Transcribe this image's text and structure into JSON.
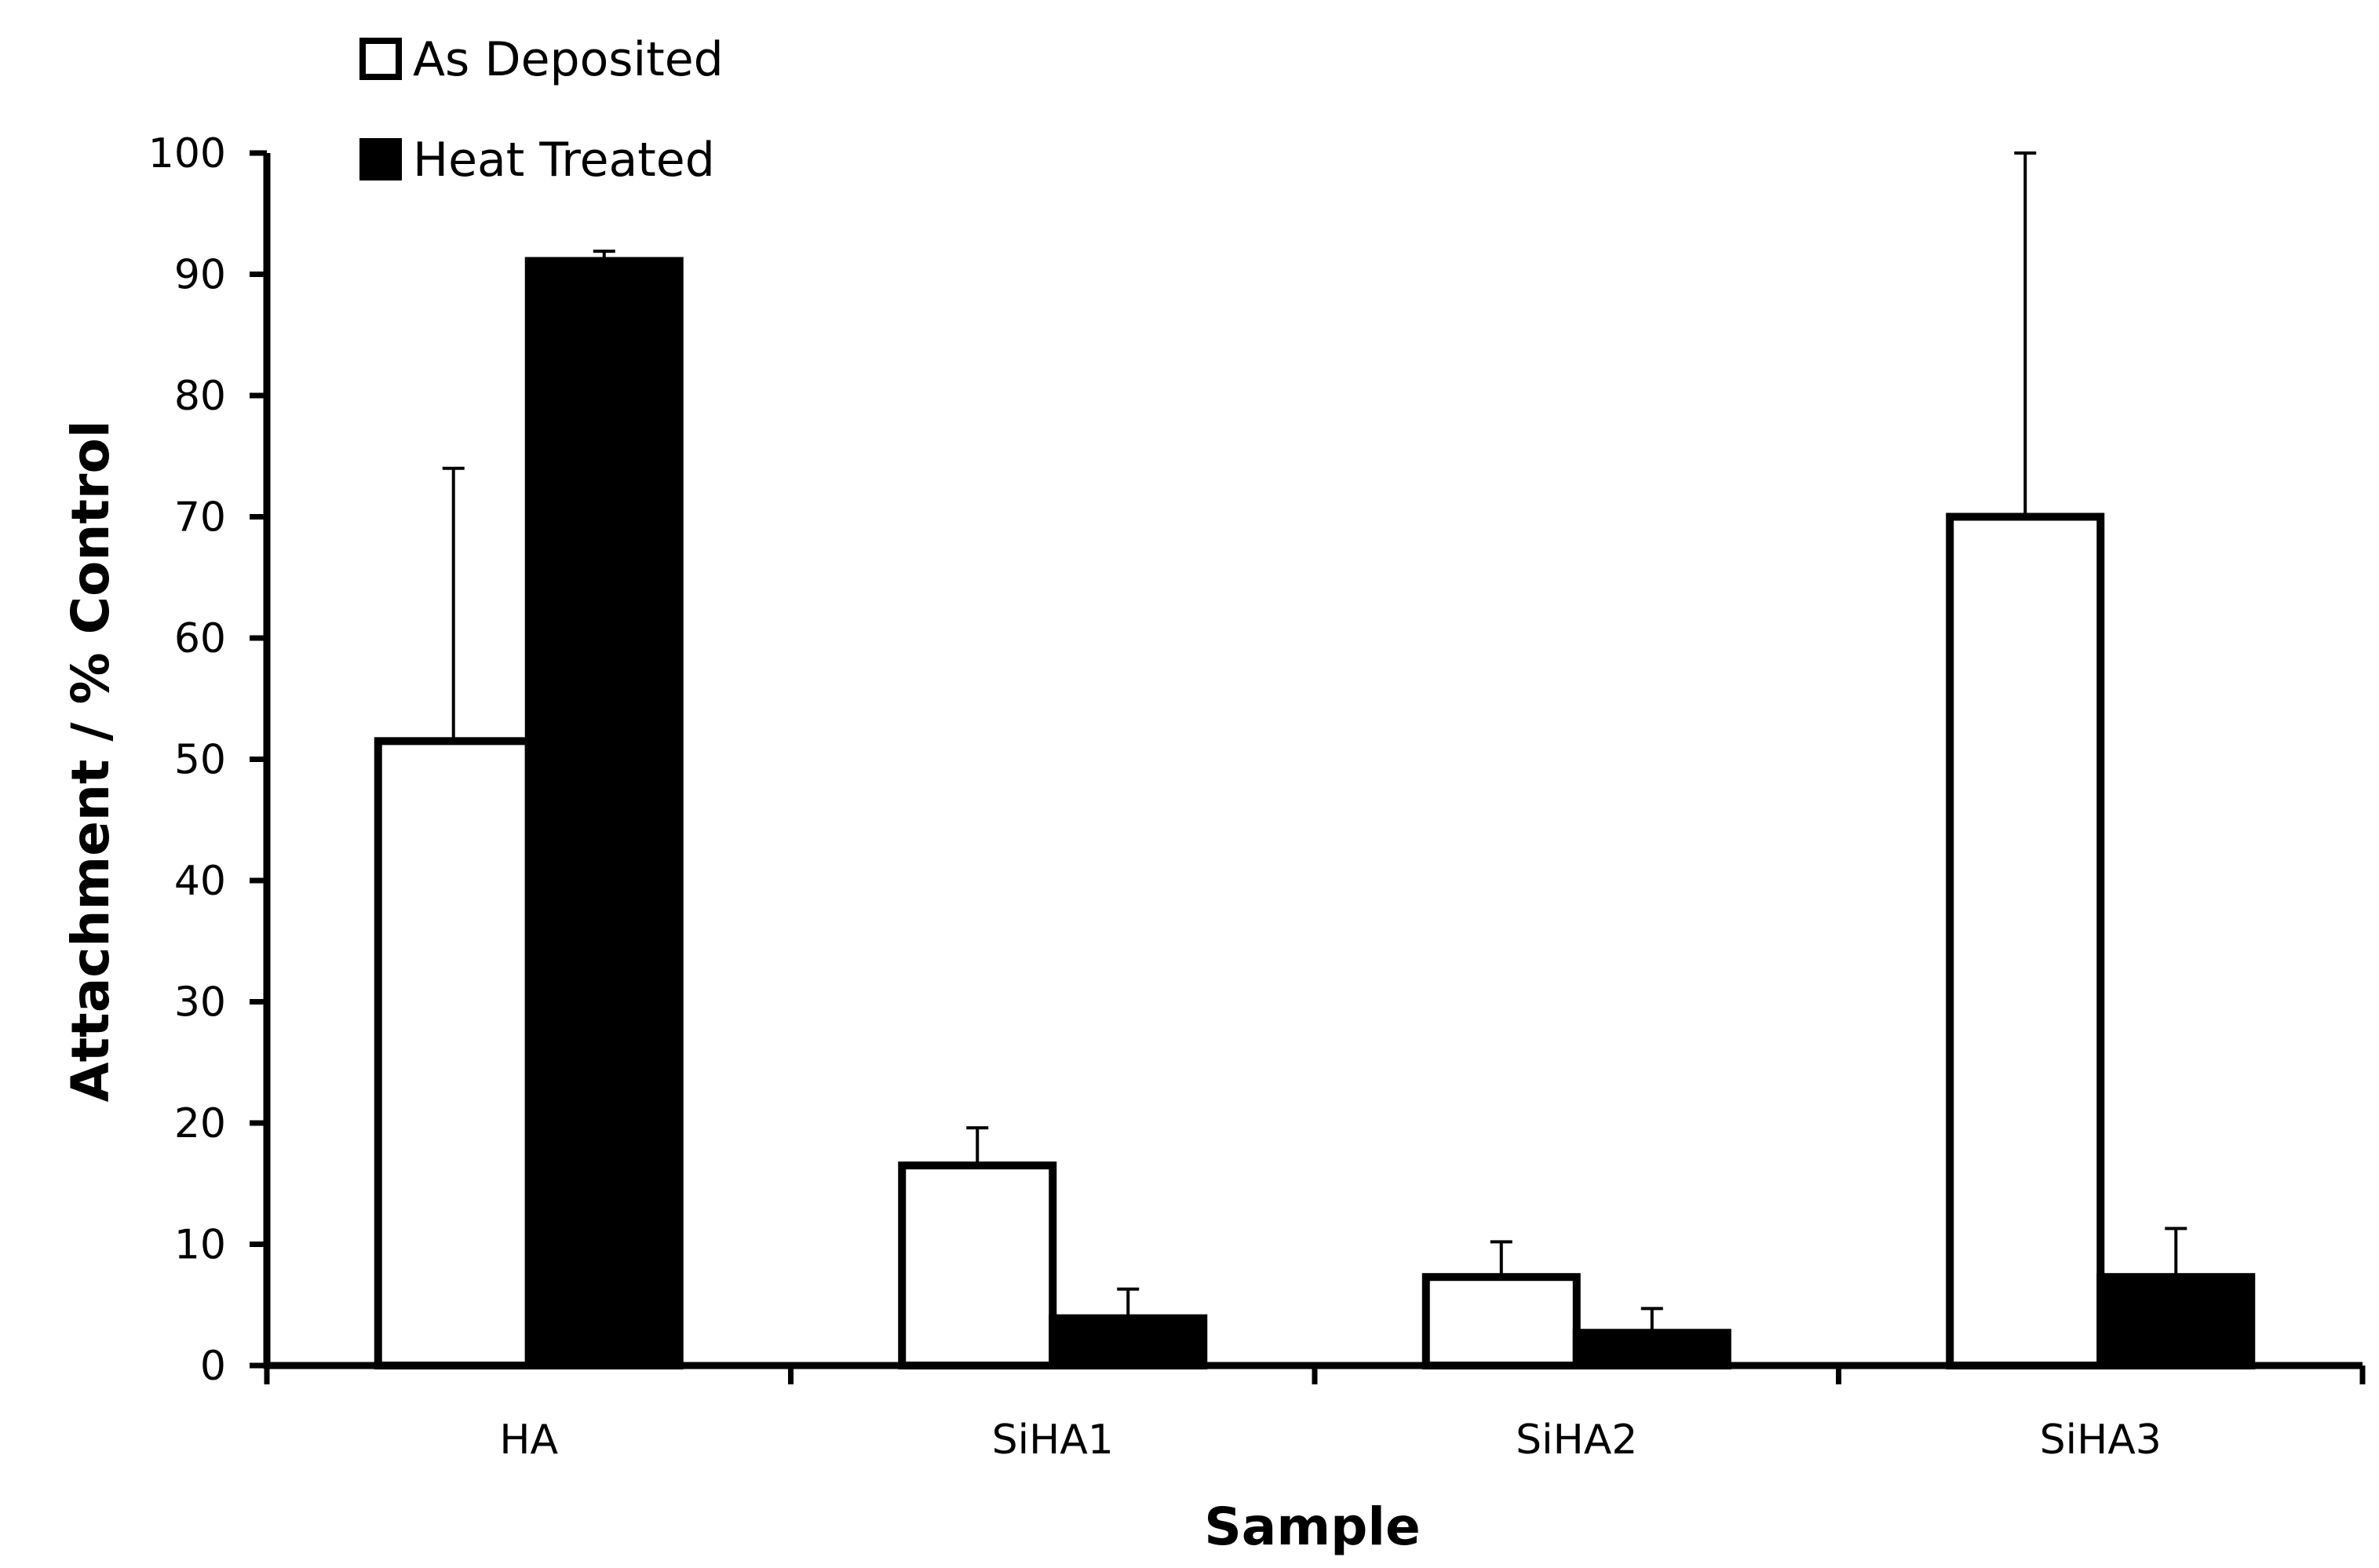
{
  "chart_data": {
    "type": "bar",
    "title": "",
    "xlabel": "Sample",
    "ylabel": "Attachment / % Control",
    "ylim": [
      0,
      100
    ],
    "yticks": [
      0,
      10,
      20,
      30,
      40,
      50,
      60,
      70,
      80,
      90,
      100
    ],
    "categories": [
      "HA",
      "SiHA1",
      "SiHA2",
      "SiHA3"
    ],
    "series": [
      {
        "name": "As Deposited",
        "color": "#ffffff",
        "values": [
          51.5,
          16.5,
          7.3,
          70
        ],
        "errors": [
          22.5,
          3.1,
          2.9,
          30
        ]
      },
      {
        "name": "Heat Treated",
        "color": "#000000",
        "values": [
          91.1,
          3.9,
          2.7,
          7.3
        ],
        "errors": [
          0.8,
          2.4,
          2.0,
          4.0
        ]
      }
    ],
    "legend": "top-left",
    "grid": false
  }
}
